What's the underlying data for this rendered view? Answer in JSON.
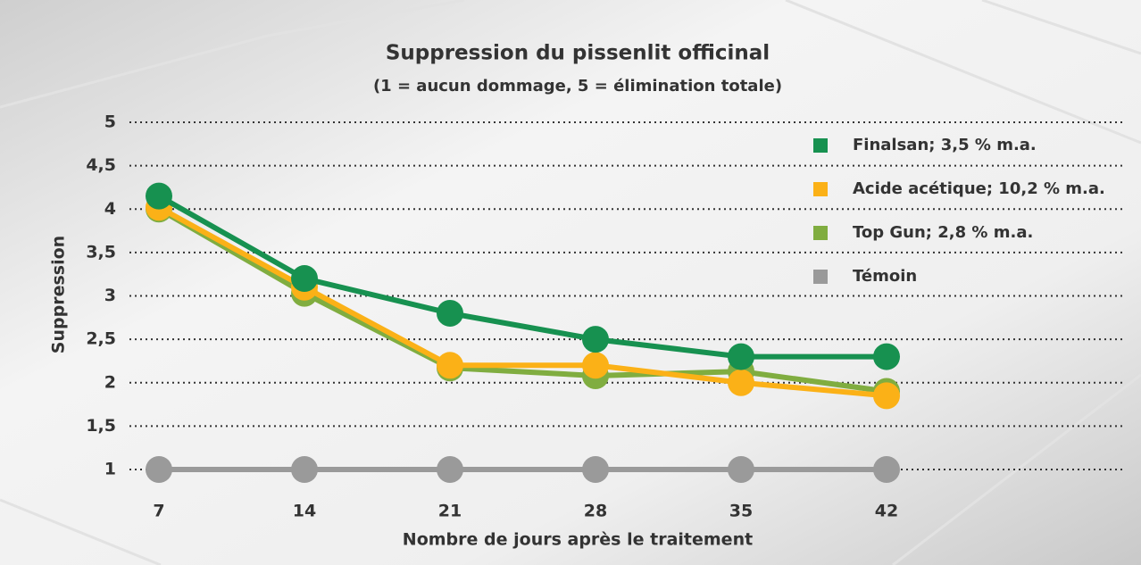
{
  "chart_data": {
    "type": "line",
    "title": "Suppression du pissenlit officinal",
    "subtitle": "(1 = aucun dommage, 5 = élimination totale)",
    "y_label": "Suppression",
    "x_label": "Nombre de jours après le traitement",
    "categories": [
      "7",
      "14",
      "21",
      "28",
      "35",
      "42"
    ],
    "ylim": [
      1,
      5
    ],
    "yticks": [
      1,
      {
        "value": 1.5,
        "label": "1,5"
      },
      2,
      {
        "value": 2.5,
        "label": "2,5"
      },
      3,
      {
        "value": 3.5,
        "label": "3,5"
      },
      4,
      {
        "value": 4.5,
        "label": "4,5"
      },
      5
    ],
    "grid": true,
    "legend": "upper right",
    "series": [
      {
        "name": "Finalsan; 3,5 % m.a.",
        "color": "#179150",
        "values": [
          4.15,
          3.2,
          2.8,
          2.5,
          2.3,
          2.3
        ]
      },
      {
        "name": "Acide acétique; 10,2 % m.a.",
        "color": "#fbb117",
        "values": [
          4.02,
          3.1,
          2.2,
          2.2,
          2.0,
          1.85
        ]
      },
      {
        "name": "Top Gun; 2,8 % m.a.",
        "color": "#80ad40",
        "values": [
          4.0,
          3.03,
          2.17,
          2.08,
          2.13,
          1.9
        ]
      },
      {
        "name": "Témoin",
        "color": "#9a9a9a",
        "values": [
          1,
          1,
          1,
          1,
          1,
          1
        ]
      }
    ]
  }
}
